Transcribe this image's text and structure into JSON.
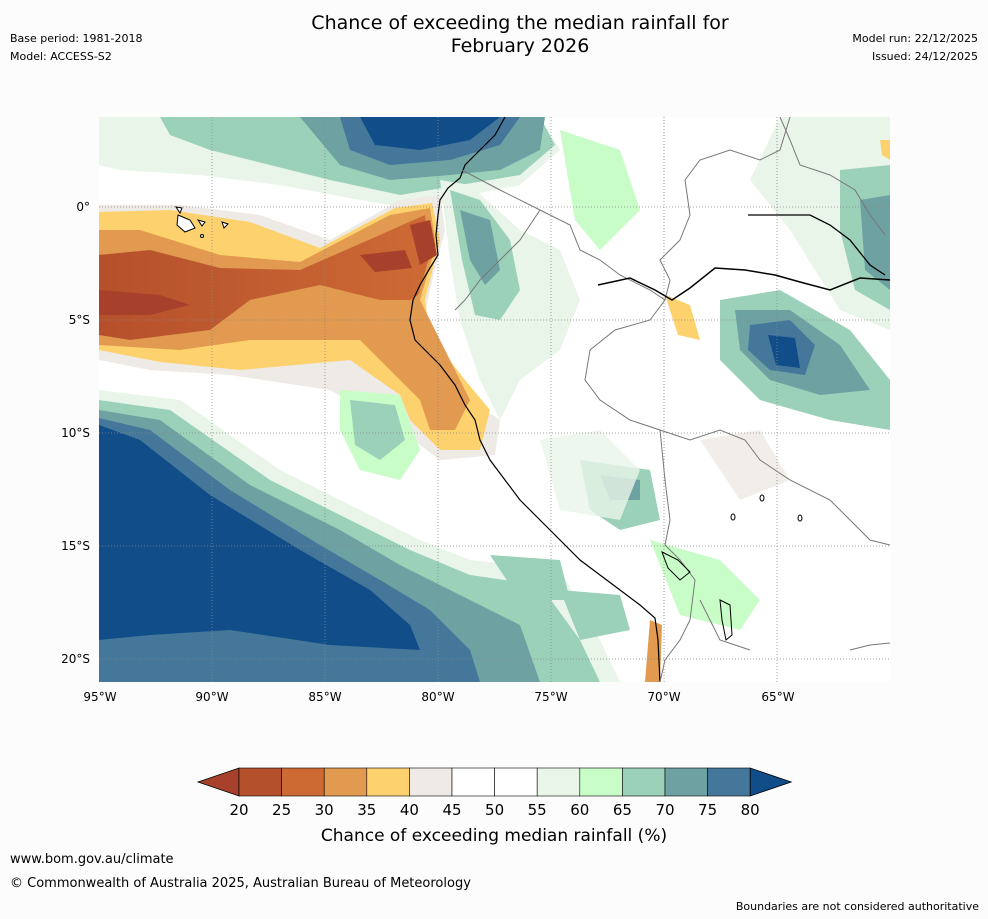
{
  "header": {
    "title_line1": "Chance of exceeding the median rainfall for",
    "title_line2": "February 2026",
    "base_period": "Base period: 1981-2018",
    "model": "Model: ACCESS-S2",
    "model_run": "Model run: 22/12/2025",
    "issued": "Issued: 24/12/2025"
  },
  "map": {
    "lat_labels": [
      "0°",
      "5°S",
      "10°S",
      "15°S",
      "20°S"
    ],
    "lon_labels": [
      "95°W",
      "90°W",
      "85°W",
      "80°W",
      "75°W",
      "70°W",
      "65°W"
    ]
  },
  "colorbar": {
    "ticks": [
      "20",
      "25",
      "30",
      "35",
      "40",
      "45",
      "50",
      "55",
      "60",
      "65",
      "70",
      "75",
      "80"
    ],
    "colors": [
      "#a8412b",
      "#b5502c",
      "#cd6a34",
      "#e29a50",
      "#fdd26e",
      "#eeeae5",
      "#ffffff",
      "#ffffff",
      "#eaf5e9",
      "#c9fdc8",
      "#9cd1b9",
      "#6ea2a2",
      "#44779a",
      "#114d88"
    ],
    "title": "Chance of exceeding median rainfall (%)"
  },
  "footer": {
    "url": "www.bom.gov.au/climate",
    "copyright": "© Commonwealth of Australia 2025, Australian Bureau of Meteorology",
    "disclaimer": "Boundaries are not considered authoritative"
  }
}
